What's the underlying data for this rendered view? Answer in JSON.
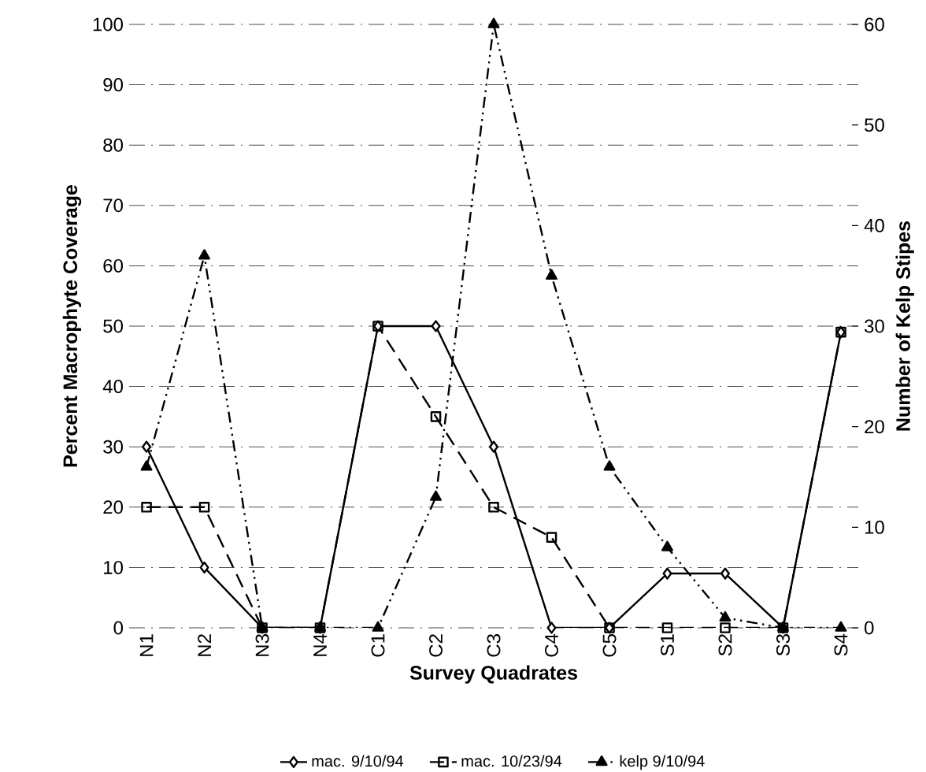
{
  "chart_data": {
    "type": "line",
    "xlabel": "Survey Quadrates",
    "ylabel": "Percent Macrophyte Coverage",
    "y2label": "Number of Kelp Stipes",
    "categories": [
      "N1",
      "N2",
      "N3",
      "N4",
      "C1",
      "C2",
      "C3",
      "C4",
      "C5",
      "S1",
      "S2",
      "S3",
      "S4"
    ],
    "series": [
      {
        "name": "mac. 9/10/94",
        "color": "#000000",
        "marker": "diamond",
        "line_style": "solid",
        "values": [
          30,
          10,
          0,
          0,
          50,
          50,
          30,
          0,
          0,
          9,
          9,
          0,
          49
        ]
      },
      {
        "name": "mac. 10/23/94",
        "color": "#000000",
        "marker": "square",
        "line_style": "dashed",
        "values": [
          20,
          20,
          0,
          0,
          50,
          35,
          20,
          15,
          0,
          0,
          0,
          0,
          49
        ]
      },
      {
        "name": "kelp 9/10/94",
        "color": "#000000",
        "marker": "triangle",
        "line_style": "dotted",
        "axis": "y2",
        "values": [
          16,
          37,
          0,
          0,
          0,
          13,
          60,
          35,
          16,
          8,
          1,
          0,
          0
        ]
      }
    ],
    "ylim": [
      0,
      100
    ],
    "yticks": [
      0,
      10,
      20,
      30,
      40,
      50,
      60,
      70,
      80,
      90,
      100
    ],
    "y2lim": [
      0,
      60
    ],
    "y2ticks": [
      0,
      10,
      20,
      30,
      40,
      50,
      60
    ],
    "grid": "y",
    "legend": "bottom"
  }
}
